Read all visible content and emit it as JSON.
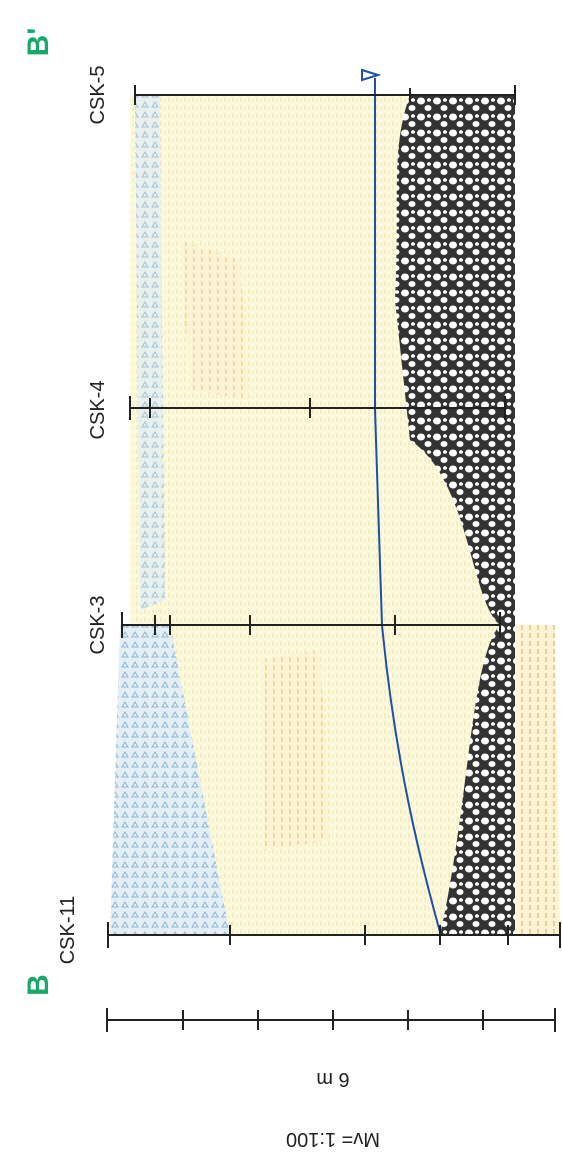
{
  "section": {
    "start_label": "B",
    "end_label": "B'"
  },
  "boreholes": [
    {
      "label": "CSK-5"
    },
    {
      "label": "CSK-4"
    },
    {
      "label": "CSK-3"
    },
    {
      "label": "CSK-11"
    }
  ],
  "scale_bar": {
    "label": "6 m"
  },
  "scale": "Mv= 1:100"
}
